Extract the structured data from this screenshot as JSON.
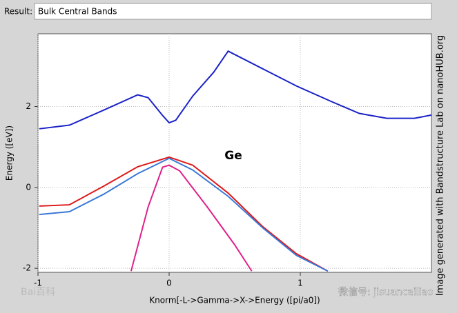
{
  "result_bar": {
    "label": "Result:",
    "value": "Bulk Central Bands"
  },
  "chart_data": {
    "type": "line",
    "xlabel": "Knorm[-L->Gamma->X->Energy ([pi/a0])",
    "ylabel": "Energy ([eV])",
    "annotation": "Ge",
    "xlim": [
      -1,
      2
    ],
    "ylim": [
      -2.1,
      3.8
    ],
    "xticks": [
      -1,
      0,
      1
    ],
    "yticks": [
      -2,
      0,
      2
    ],
    "grid": true,
    "series": [
      {
        "color": "#1a22c8",
        "x": [
          -0.99,
          -0.76,
          -0.5,
          -0.24,
          -0.16,
          -0.05,
          0,
          0.05,
          0.18,
          0.34,
          0.45,
          0.71,
          0.97,
          1.24,
          1.45,
          1.66,
          1.87,
          2.0
        ],
        "values": [
          1.45,
          1.54,
          1.91,
          2.29,
          2.22,
          1.78,
          1.6,
          1.66,
          2.26,
          2.85,
          3.37,
          2.94,
          2.51,
          2.12,
          1.83,
          1.71,
          1.71,
          1.79
        ]
      },
      {
        "color": "#e01818",
        "x": [
          -0.99,
          -0.76,
          -0.5,
          -0.24,
          0,
          0.18,
          0.45,
          0.71,
          0.97,
          1.21
        ],
        "values": [
          -0.46,
          -0.43,
          0.03,
          0.51,
          0.75,
          0.55,
          -0.14,
          -0.96,
          -1.64,
          -2.07
        ]
      },
      {
        "color": "#3a78d8",
        "x": [
          -0.99,
          -0.76,
          -0.5,
          -0.24,
          0,
          0.18,
          0.45,
          0.71,
          0.97,
          1.21
        ],
        "values": [
          -0.67,
          -0.6,
          -0.17,
          0.34,
          0.72,
          0.43,
          -0.22,
          -0.99,
          -1.68,
          -2.07
        ]
      },
      {
        "color": "#e0208a",
        "x": [
          -0.29,
          -0.16,
          -0.05,
          0,
          0.08,
          0.29,
          0.5,
          0.63
        ],
        "values": [
          -2.07,
          -0.48,
          0.5,
          0.55,
          0.41,
          -0.48,
          -1.42,
          -2.07
        ]
      }
    ]
  },
  "watermark": "Image generated with Bandstructure Lab on nanoHUB.org",
  "overlays": [
    "Bai百科",
    "微信号: jisuancailiao"
  ]
}
